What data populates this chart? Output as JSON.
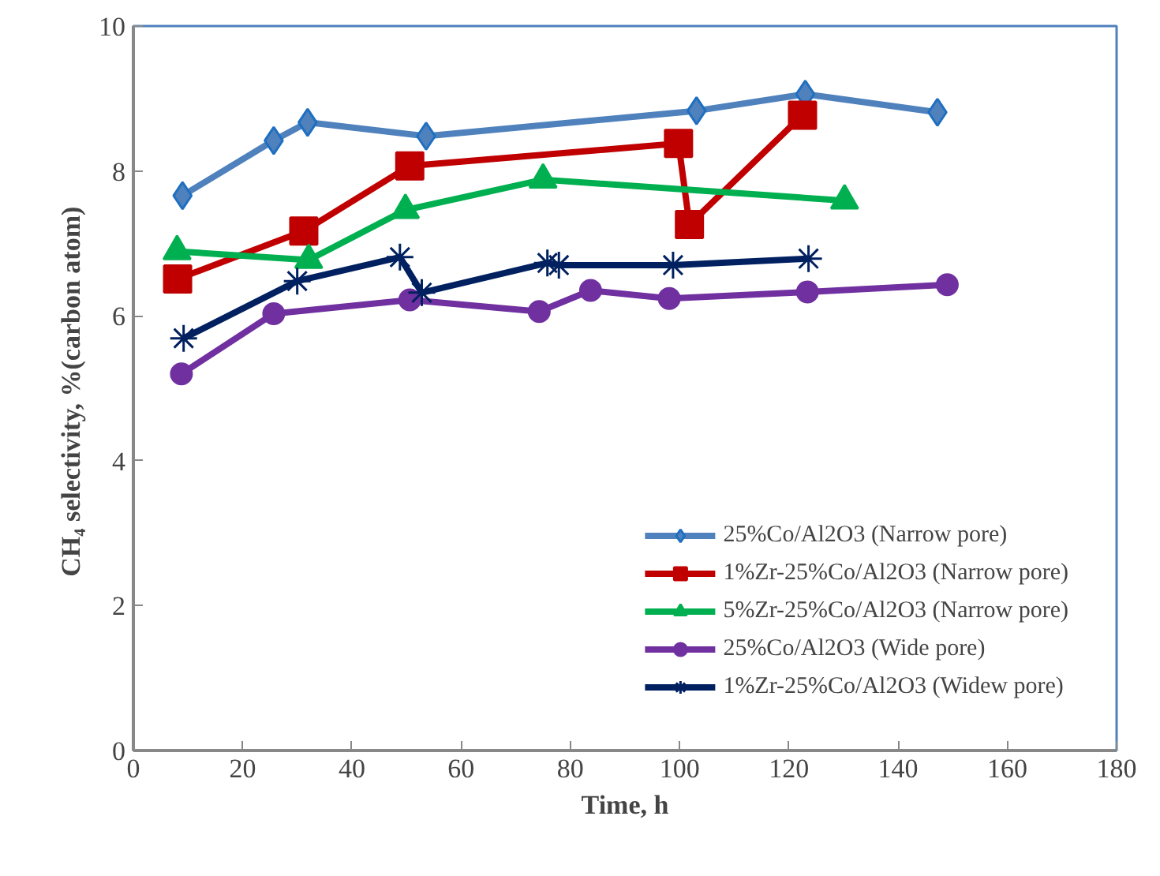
{
  "chart_data": {
    "type": "line",
    "xlabel": "Time, h",
    "ylabel": "CH₄ selectivity,  %(carbon atom)",
    "xlim": [
      0,
      180
    ],
    "xticks": [
      0,
      20,
      40,
      60,
      80,
      100,
      120,
      140,
      160,
      180
    ],
    "ylim": [
      0,
      10
    ],
    "yticks": [
      0,
      2,
      4,
      6,
      8,
      10
    ],
    "grid": false,
    "legend": "bottom right",
    "line_style": "solid",
    "series": [
      {
        "name": "25%Co/Al2O3 (Narrow pore)",
        "color": "#4f81bd",
        "marker": "diamond",
        "x": [
          9.0,
          25.7,
          31.9,
          53.6,
          103.1,
          123.0,
          147.2
        ],
        "values": [
          7.66,
          8.42,
          8.67,
          8.48,
          8.83,
          9.06,
          8.81
        ]
      },
      {
        "name": "1%Zr-25%Co/Al2O3 (Narrow pore)",
        "color": "#c00000",
        "marker": "square",
        "x": [
          8.1,
          31.2,
          50.6,
          99.8,
          101.8,
          122.5
        ],
        "values": [
          6.51,
          7.17,
          8.07,
          8.38,
          7.26,
          8.77
        ]
      },
      {
        "name": "5%Zr-25%Co/Al2O3 (Narrow pore)",
        "color": "#00b050",
        "marker": "triangle",
        "x": [
          8.0,
          32.1,
          49.8,
          75.0,
          130.2
        ],
        "values": [
          6.89,
          6.77,
          7.46,
          7.88,
          7.59
        ]
      },
      {
        "name": "25%Co/Al2O3 (Wide pore)",
        "color": "#7030a0",
        "marker": "circle",
        "x": [
          8.8,
          25.7,
          50.6,
          74.3,
          83.7,
          98.1,
          123.4,
          149.0
        ],
        "values": [
          5.2,
          6.03,
          6.22,
          6.06,
          6.35,
          6.24,
          6.33,
          6.43
        ]
      },
      {
        "name": "1%Zr-25%Co/Al2O3 (Widew pore)",
        "color": "#002060",
        "marker": "cross",
        "x": [
          9.2,
          30.0,
          48.8,
          52.8,
          75.8,
          77.9,
          98.8,
          123.6
        ],
        "values": [
          5.69,
          6.48,
          6.81,
          6.32,
          6.73,
          6.7,
          6.7,
          6.79
        ]
      }
    ]
  }
}
